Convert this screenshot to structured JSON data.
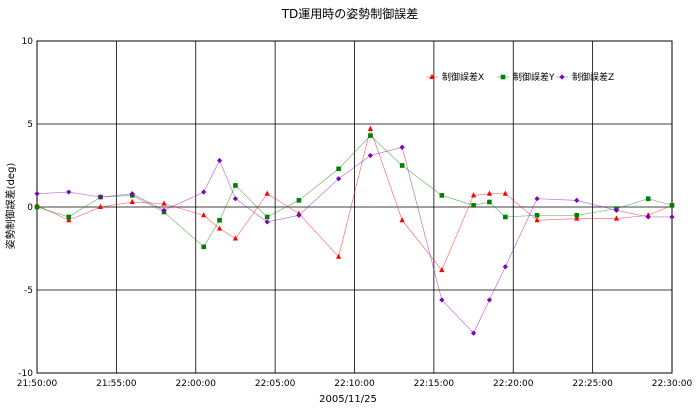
{
  "chart_data": {
    "type": "line",
    "title": "TD運用時の姿勢制御誤差",
    "xlabel": "2005/11/25",
    "ylabel": "姿勢制御誤差(deg)",
    "xlim": [
      "21:50:00",
      "22:30:00"
    ],
    "ylim": [
      -10,
      10
    ],
    "x_ticks": [
      "21:50:00",
      "21:55:00",
      "22:00:00",
      "22:05:00",
      "22:10:00",
      "22:15:00",
      "22:20:00",
      "22:25:00",
      "22:30:00"
    ],
    "y_ticks": [
      10,
      5,
      0,
      -5,
      -10
    ],
    "grid": true,
    "legend_position": "top-right",
    "series": [
      {
        "name": "制御誤差X",
        "color": "#ff0000",
        "marker": "triangle",
        "points": [
          [
            "21:50:00",
            0.1
          ],
          [
            "21:52:00",
            -0.8
          ],
          [
            "21:54:00",
            0.0
          ],
          [
            "21:56:00",
            0.3
          ],
          [
            "21:58:00",
            0.2
          ],
          [
            "22:00:30",
            -0.5
          ],
          [
            "22:01:30",
            -1.3
          ],
          [
            "22:02:30",
            -1.9
          ],
          [
            "22:04:30",
            0.8
          ],
          [
            "22:06:30",
            -0.4
          ],
          [
            "22:09:00",
            -3.0
          ],
          [
            "22:11:00",
            4.7
          ],
          [
            "22:13:00",
            -0.8
          ],
          [
            "22:15:30",
            -3.8
          ],
          [
            "22:17:30",
            0.7
          ],
          [
            "22:18:30",
            0.8
          ],
          [
            "22:19:30",
            0.8
          ],
          [
            "22:21:30",
            -0.8
          ],
          [
            "22:24:00",
            -0.7
          ],
          [
            "22:26:30",
            -0.7
          ],
          [
            "22:28:30",
            -0.5
          ],
          [
            "22:30:00",
            0.1
          ]
        ]
      },
      {
        "name": "制御誤差Y",
        "color": "#008000",
        "marker": "square",
        "points": [
          [
            "21:50:00",
            0.0
          ],
          [
            "21:52:00",
            -0.6
          ],
          [
            "21:54:00",
            0.6
          ],
          [
            "21:56:00",
            0.7
          ],
          [
            "21:58:00",
            -0.3
          ],
          [
            "22:00:30",
            -2.4
          ],
          [
            "22:01:30",
            -0.8
          ],
          [
            "22:02:30",
            1.3
          ],
          [
            "22:04:30",
            -0.6
          ],
          [
            "22:06:30",
            0.4
          ],
          [
            "22:09:00",
            2.3
          ],
          [
            "22:11:00",
            4.3
          ],
          [
            "22:13:00",
            2.5
          ],
          [
            "22:15:30",
            0.7
          ],
          [
            "22:17:30",
            0.1
          ],
          [
            "22:18:30",
            0.3
          ],
          [
            "22:19:30",
            -0.6
          ],
          [
            "22:21:30",
            -0.5
          ],
          [
            "22:24:00",
            -0.5
          ],
          [
            "22:26:30",
            -0.1
          ],
          [
            "22:28:30",
            0.5
          ],
          [
            "22:30:00",
            0.1
          ]
        ]
      },
      {
        "name": "制御誤差Z",
        "color": "#8000c0",
        "marker": "diamond",
        "points": [
          [
            "21:50:00",
            0.8
          ],
          [
            "21:52:00",
            0.9
          ],
          [
            "21:54:00",
            0.6
          ],
          [
            "21:56:00",
            0.8
          ],
          [
            "21:58:00",
            -0.2
          ],
          [
            "22:00:30",
            0.9
          ],
          [
            "22:01:30",
            2.8
          ],
          [
            "22:02:30",
            0.5
          ],
          [
            "22:04:30",
            -0.9
          ],
          [
            "22:06:30",
            -0.5
          ],
          [
            "22:09:00",
            1.7
          ],
          [
            "22:11:00",
            3.1
          ],
          [
            "22:13:00",
            3.6
          ],
          [
            "22:15:30",
            -5.6
          ],
          [
            "22:17:30",
            -7.6
          ],
          [
            "22:18:30",
            -5.6
          ],
          [
            "22:19:30",
            -3.6
          ],
          [
            "22:21:30",
            0.5
          ],
          [
            "22:24:00",
            0.4
          ],
          [
            "22:26:30",
            -0.2
          ],
          [
            "22:28:30",
            -0.6
          ],
          [
            "22:30:00",
            -0.6
          ]
        ]
      }
    ]
  }
}
